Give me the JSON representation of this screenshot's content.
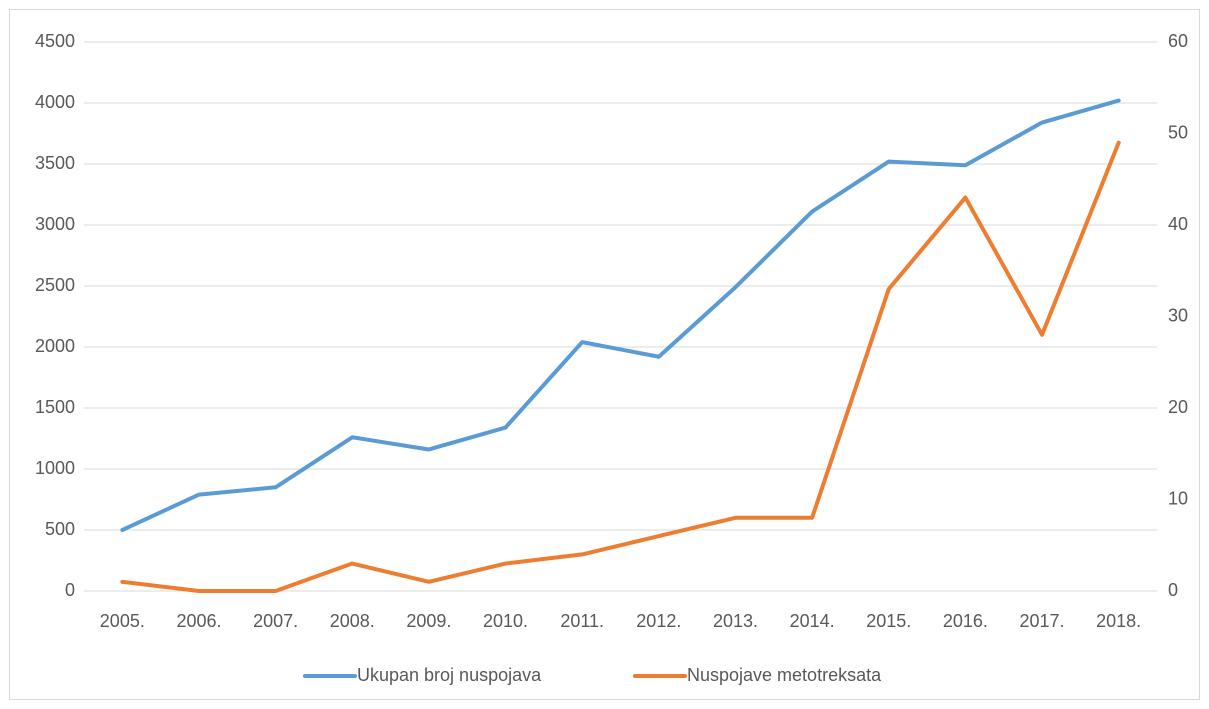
{
  "chart_data": {
    "type": "line",
    "categories": [
      "2005.",
      "2006.",
      "2007.",
      "2008.",
      "2009.",
      "2010.",
      "2011.",
      "2012.",
      "2013.",
      "2014.",
      "2015.",
      "2016.",
      "2017.",
      "2018."
    ],
    "series": [
      {
        "name": "Ukupan broj nuspojava",
        "color": "#5b9bd5",
        "values": [
          500,
          790,
          850,
          1260,
          1160,
          1340,
          2040,
          1920,
          2490,
          3110,
          3520,
          3490,
          3840,
          4020
        ]
      },
      {
        "name": "Nuspojave metotreksata",
        "color": "#ed7d31",
        "axis": "y2",
        "values": [
          1,
          0,
          0,
          3,
          1,
          3,
          4,
          6,
          8,
          8,
          33,
          43,
          28,
          49
        ]
      }
    ],
    "ylim": [
      0,
      4500
    ],
    "yticks": [
      0,
      500,
      1000,
      1500,
      2000,
      2500,
      3000,
      3500,
      4000,
      4500
    ],
    "y2lim": [
      0,
      60
    ],
    "y2ticks": [
      0,
      10,
      20,
      30,
      40,
      50,
      60
    ],
    "grid": true,
    "legend": "bottom"
  }
}
